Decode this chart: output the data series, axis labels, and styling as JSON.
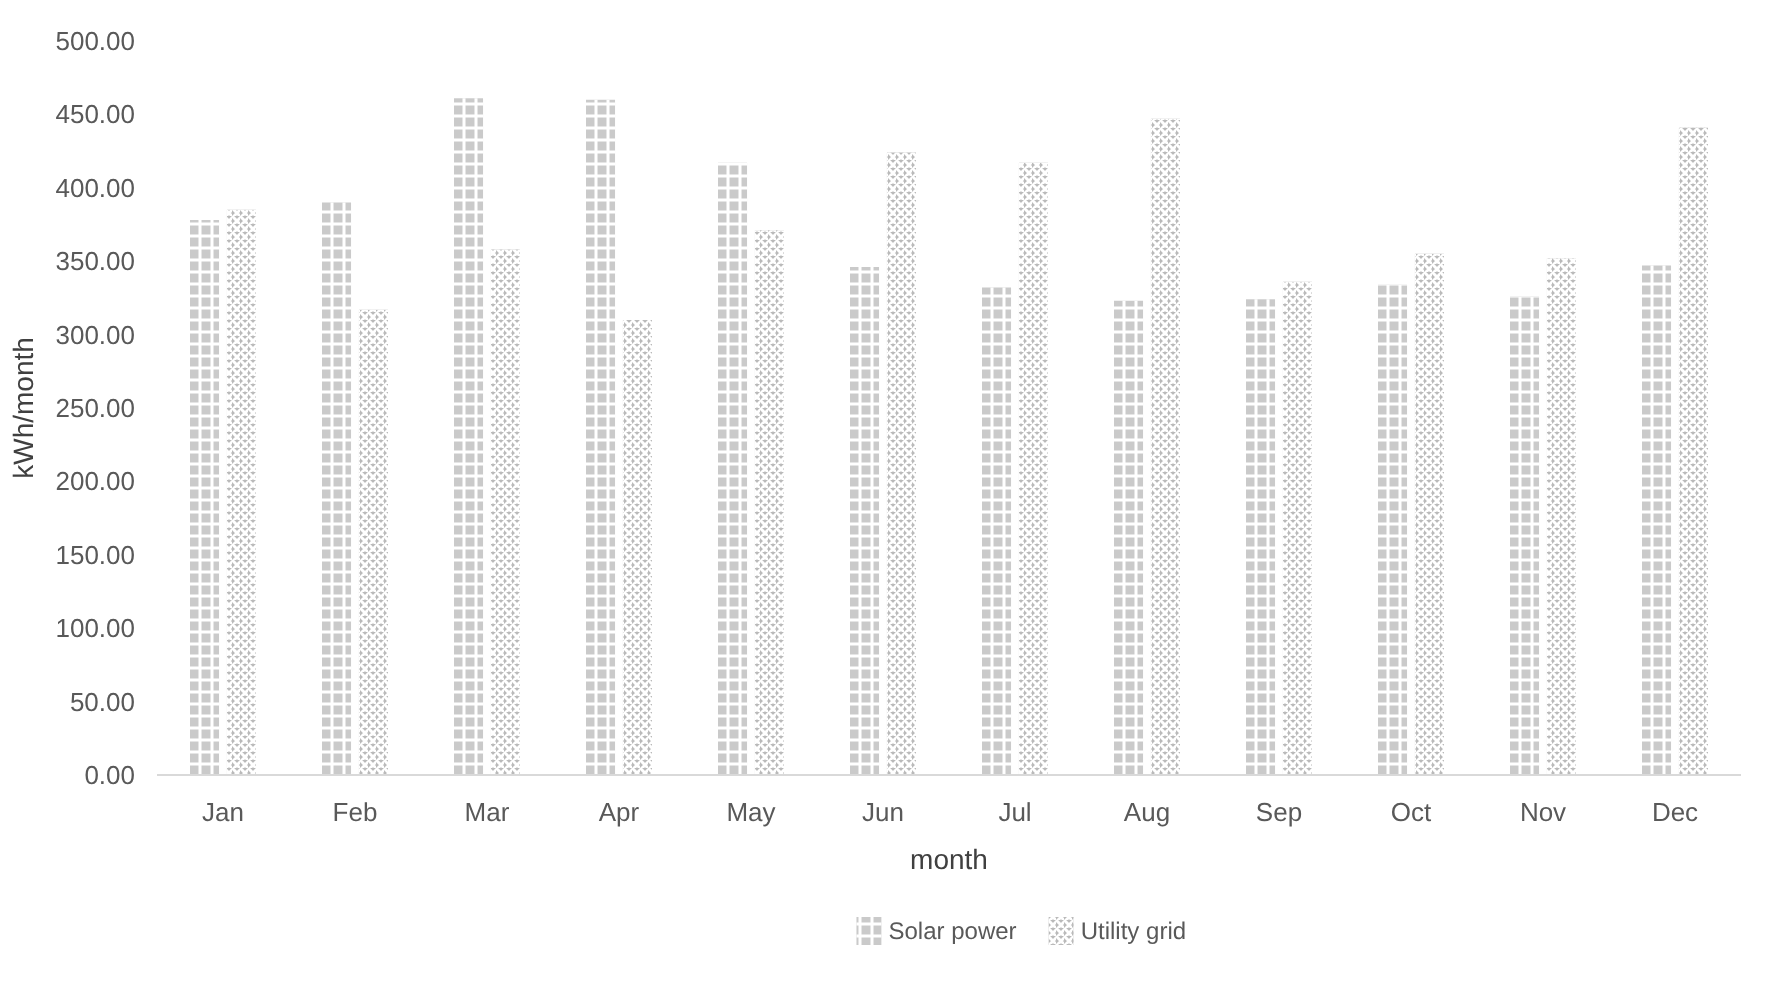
{
  "chart_data": {
    "type": "bar",
    "xlabel": "month",
    "ylabel": "kWh/month",
    "categories": [
      "Jan",
      "Feb",
      "Mar",
      "Apr",
      "May",
      "Jun",
      "Jul",
      "Aug",
      "Sep",
      "Oct",
      "Nov",
      "Dec"
    ],
    "series": [
      {
        "name": "Solar power",
        "color": "#a6a6a6",
        "values": [
          378,
          390,
          461,
          460,
          417,
          346,
          332,
          323,
          324,
          334,
          326,
          347
        ]
      },
      {
        "name": "Utility grid",
        "color": "#8c8c8c",
        "values": [
          385,
          317,
          358,
          310,
          371,
          424,
          417,
          447,
          336,
          355,
          352,
          441
        ]
      }
    ],
    "ylim": [
      0,
      500
    ],
    "yticks": [
      {
        "value": 0,
        "label": "0.00"
      },
      {
        "value": 50,
        "label": "50.00"
      },
      {
        "value": 100,
        "label": "100.00"
      },
      {
        "value": 150,
        "label": "150.00"
      },
      {
        "value": 200,
        "label": "200.00"
      },
      {
        "value": 250,
        "label": "250.00"
      },
      {
        "value": 300,
        "label": "300.00"
      },
      {
        "value": 350,
        "label": "350.00"
      },
      {
        "value": 400,
        "label": "400.00"
      },
      {
        "value": 450,
        "label": "450.00"
      },
      {
        "value": 500,
        "label": "500.00"
      }
    ],
    "grid": false,
    "legend": "bottom"
  }
}
